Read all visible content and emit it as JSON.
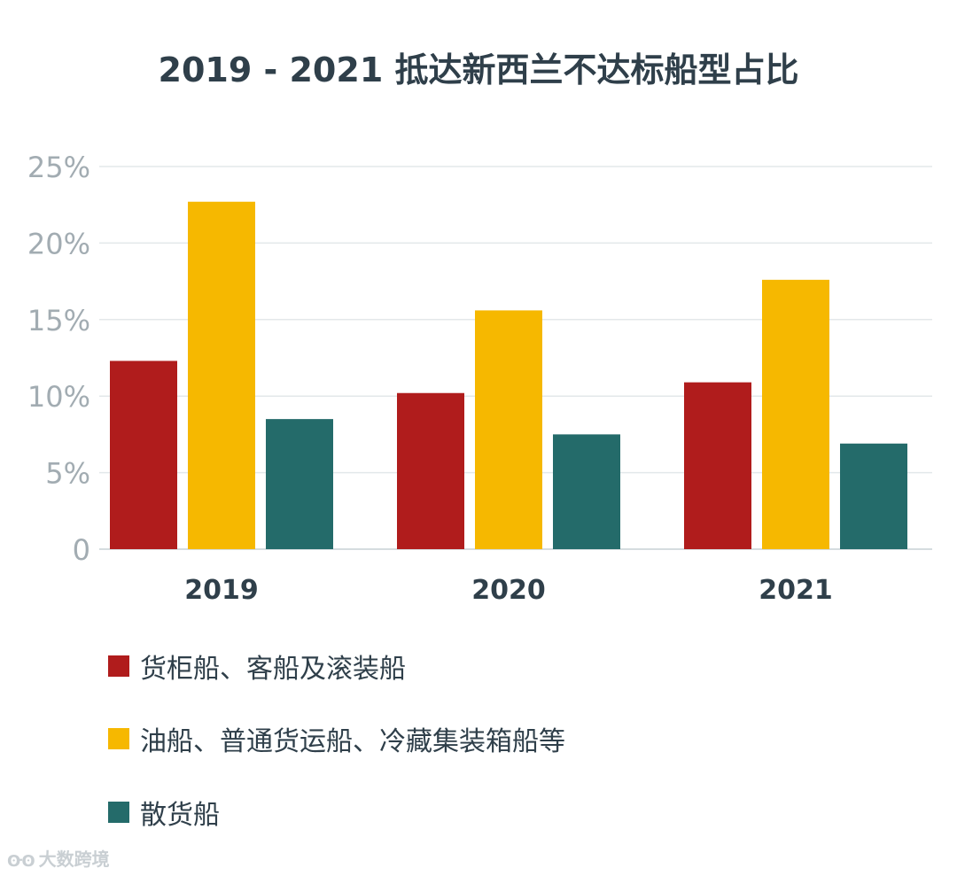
{
  "chart_data": {
    "type": "bar",
    "title": "2019 - 2021 抵达新西兰不达标船型占比",
    "categories": [
      "2019",
      "2020",
      "2021"
    ],
    "series": [
      {
        "name": "货柜船、客船及滚装船",
        "color": "#b01c1c",
        "values": [
          12.3,
          10.2,
          10.9
        ]
      },
      {
        "name": "油船、普通货运船、冷藏集装箱船等",
        "color": "#f6b800",
        "values": [
          22.7,
          15.6,
          17.6
        ]
      },
      {
        "name": "散货船",
        "color": "#246b6a",
        "values": [
          8.5,
          7.5,
          6.9
        ]
      }
    ],
    "y_ticks": [
      "0",
      "5%",
      "10%",
      "15%",
      "20%",
      "25%"
    ],
    "y_tick_values": [
      0,
      5,
      10,
      15,
      20,
      25
    ],
    "ylim": [
      0,
      25
    ],
    "xlabel": "",
    "ylabel": "",
    "grid": true,
    "legend_position": "bottom-left"
  },
  "watermark": {
    "icon": "ʘ᠊ʘ",
    "text": "大数跨境"
  }
}
